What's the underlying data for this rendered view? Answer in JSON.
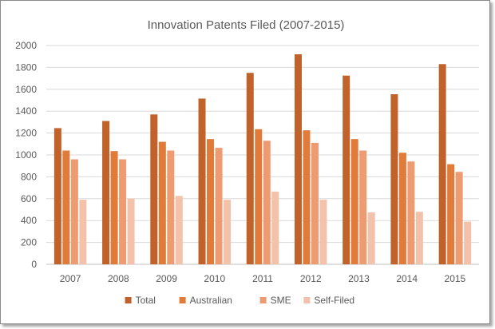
{
  "chart_data": {
    "type": "bar",
    "title": "Innovation Patents Filed (2007-2015)",
    "xlabel": "",
    "ylabel": "",
    "ylim": [
      0,
      2000
    ],
    "yticks": [
      0,
      200,
      400,
      600,
      800,
      1000,
      1200,
      1400,
      1600,
      1800,
      2000
    ],
    "grid": true,
    "legend_position": "bottom",
    "categories": [
      "2007",
      "2008",
      "2009",
      "2010",
      "2011",
      "2012",
      "2013",
      "2014",
      "2015"
    ],
    "series": [
      {
        "name": "Total",
        "color": "#C0622A",
        "values": [
          1245,
          1310,
          1370,
          1515,
          1750,
          1920,
          1725,
          1555,
          1830
        ]
      },
      {
        "name": "Australian",
        "color": "#E07B39",
        "values": [
          1040,
          1035,
          1120,
          1145,
          1235,
          1225,
          1145,
          1020,
          915
        ]
      },
      {
        "name": "SME",
        "color": "#EE9B72",
        "values": [
          960,
          960,
          1040,
          1065,
          1130,
          1110,
          1040,
          940,
          845
        ]
      },
      {
        "name": "Self-Filed",
        "color": "#F4C2AA",
        "values": [
          590,
          600,
          625,
          590,
          665,
          590,
          475,
          480,
          390
        ]
      }
    ]
  }
}
